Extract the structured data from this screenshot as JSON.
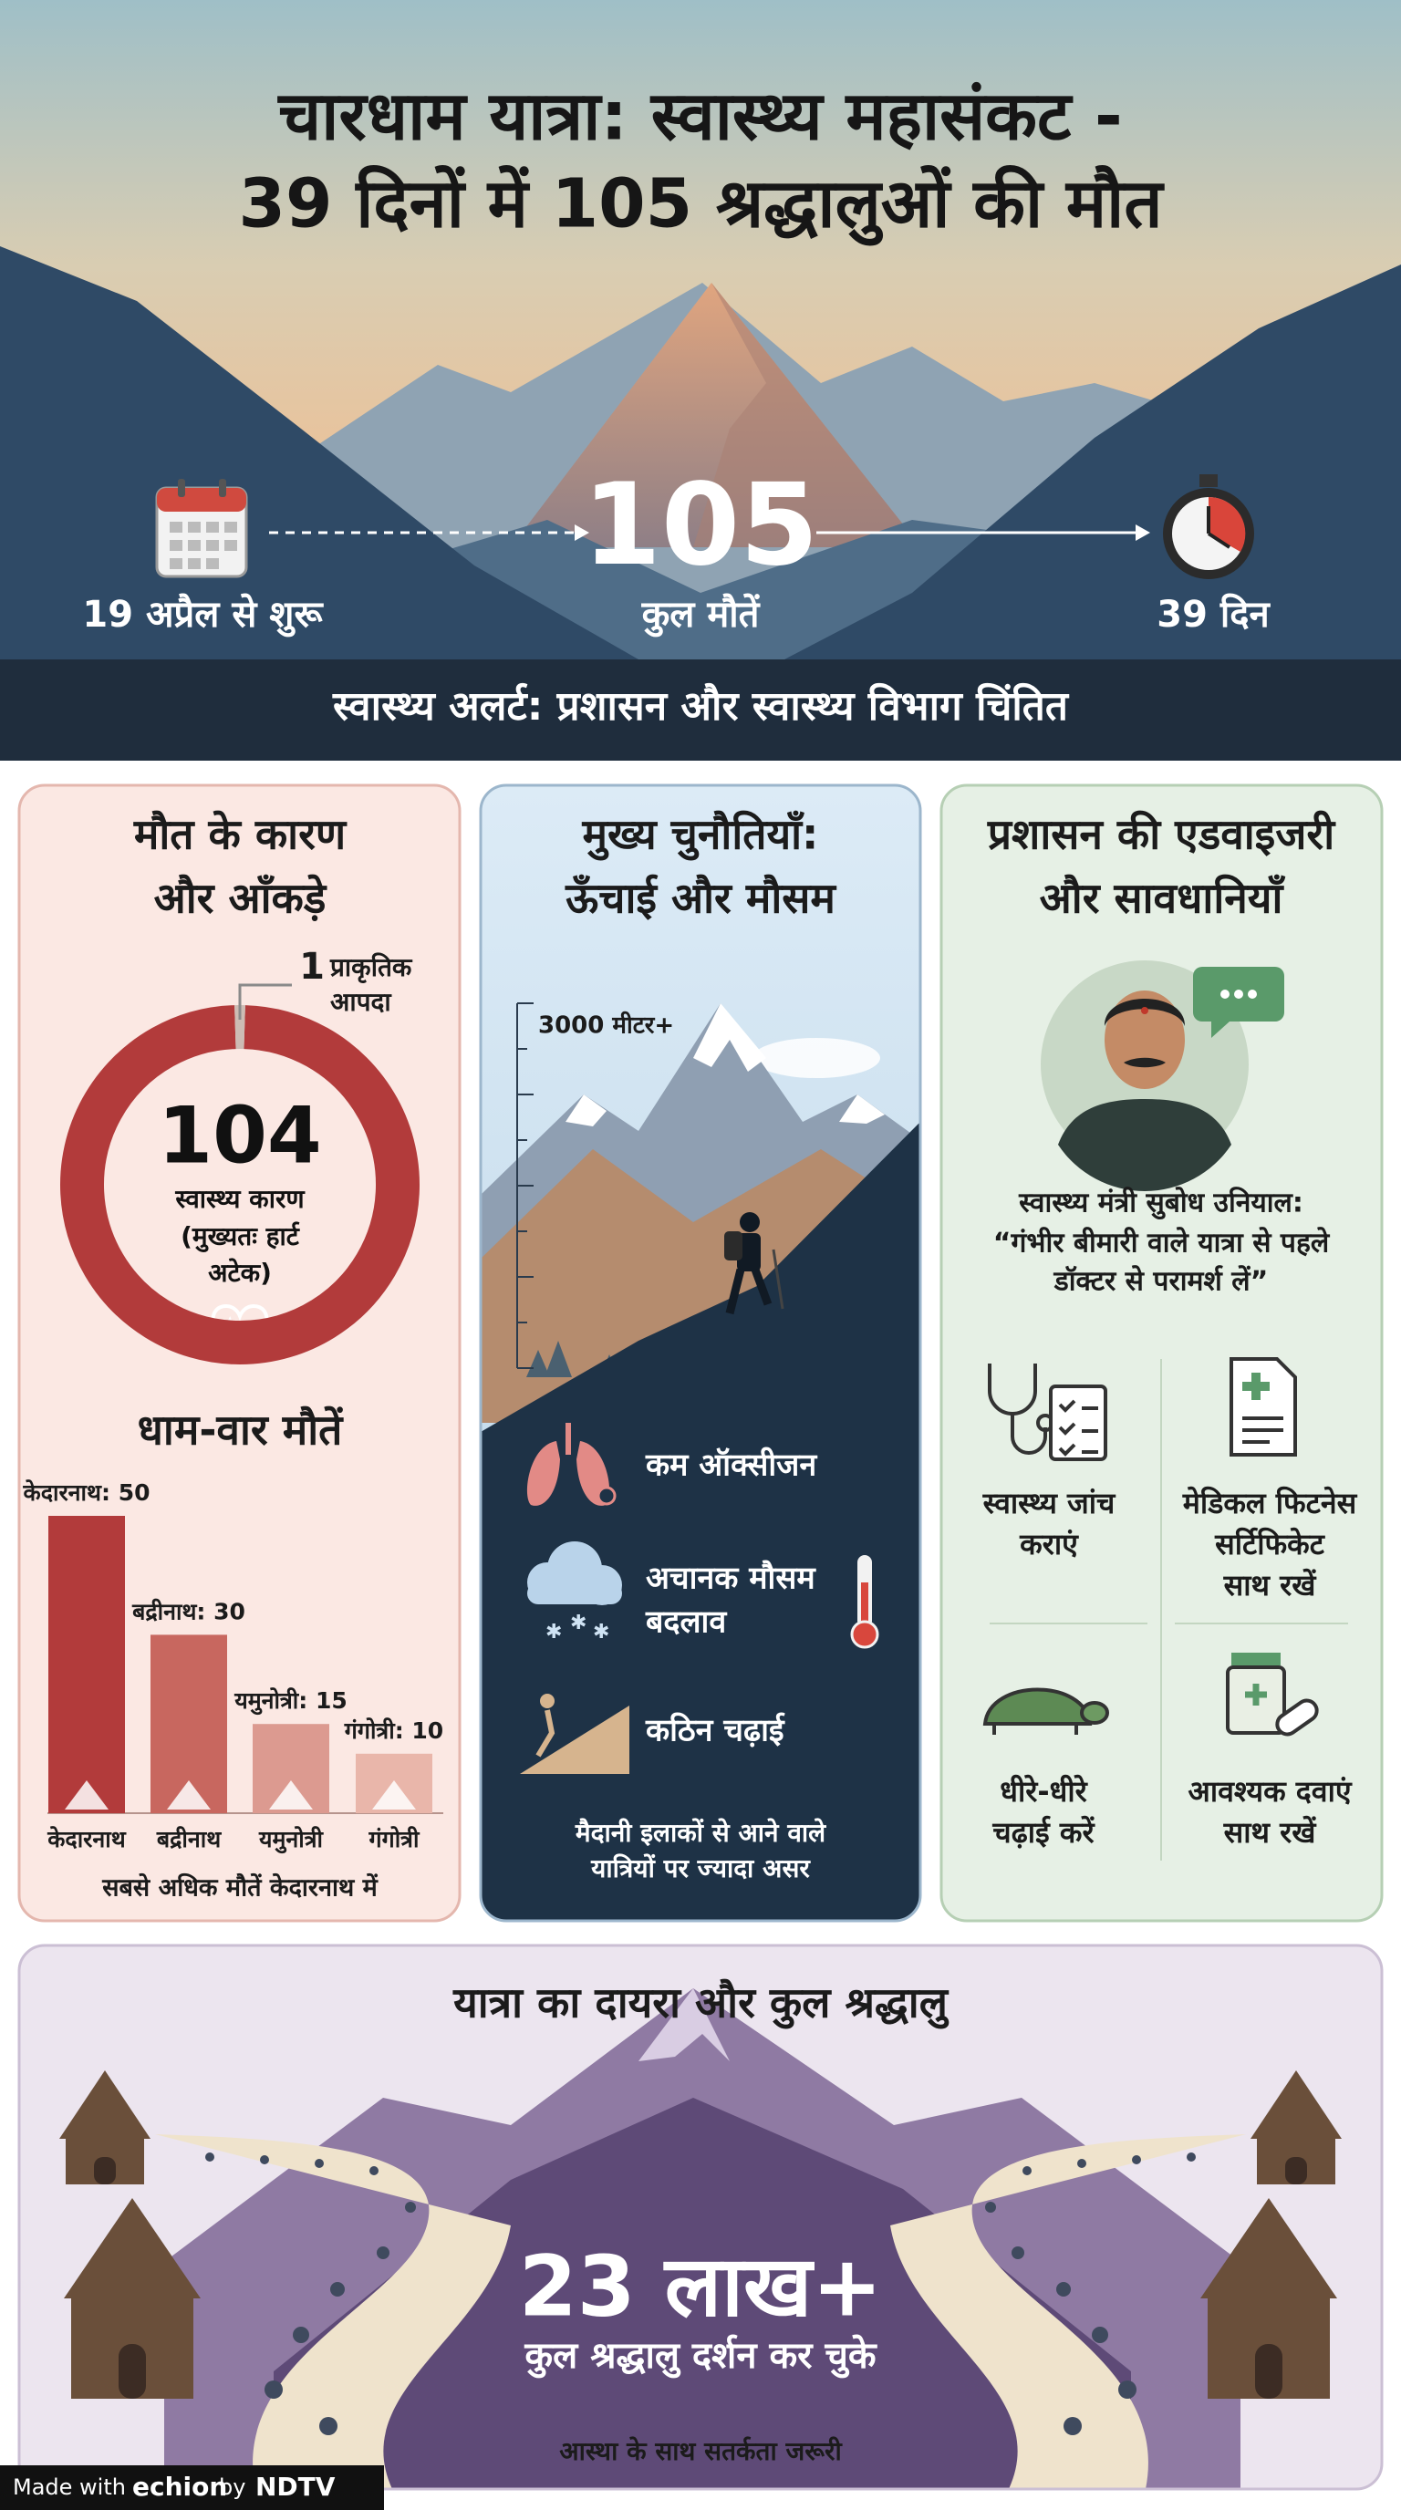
{
  "header": {
    "title_line1": "चारधाम यात्रा: स्वास्थ्य महासंकट -",
    "title_line2": "39 दिनों में 105 श्रद्धालुओं की मौत"
  },
  "timeline": {
    "start": "19 अप्रैल से शुरू",
    "total": 105,
    "total_label": "कुल मौतें",
    "duration": "39 दिन"
  },
  "alert": "स्वास्थ्य अलर्ट: प्रशासन और स्वास्थ्य विभाग चिंतित",
  "causes": {
    "title": [
      "मौत के कारण",
      "और आँकड़े"
    ],
    "donut": {
      "values": [
        104,
        1
      ],
      "colors": [
        "#b23b3b",
        "#cdbcb4"
      ],
      "labels": [
        [
          "स्वास्थ्य कारण",
          "(मुख्यतः हार्ट",
          "अटेक)"
        ],
        [
          "प्राकृतिक",
          "आपदा"
        ]
      ]
    },
    "bars": {
      "title": "धाम-वार मौतें",
      "categories": [
        "केदारनाथ",
        "बद्रीनाथ",
        "यमुनोत्री",
        "गंगोत्री"
      ],
      "values": [
        50,
        30,
        15,
        10
      ],
      "value_labels": [
        "केदारनाथ: 50",
        "बद्रीनाथ: 30",
        "यमुनोत्री: 15",
        "गंगोत्री: 10"
      ],
      "colors": [
        "#b23b3b",
        "#c8675f",
        "#dc9a90",
        "#e9b6aa"
      ],
      "note": "सबसे अधिक मौतें केदारनाथ में"
    }
  },
  "challenges": {
    "title": [
      "मुख्य चुनौतियाँ:",
      "ऊँचाई और मौसम"
    ],
    "altitude": "3000 मीटर+",
    "items": [
      [
        "कम ऑक्सीजन"
      ],
      [
        "अचानक मौसम",
        "बदलाव"
      ],
      [
        "कठिन चढ़ाई"
      ]
    ],
    "note": [
      "मैदानी इलाकों से आने वाले",
      "यात्रियों पर ज्यादा असर"
    ]
  },
  "advisory": {
    "title": [
      "प्रशासन की एडवाइजरी",
      "और सावधानियाँ"
    ],
    "quote": [
      "स्वास्थ्य मंत्री सुबोध उनियाल:",
      "“गंभीर बीमारी वाले यात्रा से पहले",
      "डॉक्टर से परामर्श लें”"
    ],
    "tips": [
      [
        "स्वास्थ्य जांच",
        "कराएं"
      ],
      [
        "मेडिकल फिटनेस",
        "सर्टिफिकेट",
        "साथ रखें"
      ],
      [
        "धीरे-धीरे",
        "चढ़ाई करें"
      ],
      [
        "आवश्यक दवाएं",
        "साथ रखें"
      ]
    ]
  },
  "scope": {
    "title": "यात्रा का दायरा और कुल श्रद्धालु",
    "total": "23 लाख+",
    "total_label": "कुल श्रद्धालु दर्शन कर चुके",
    "note": "आस्था के साथ सतर्कता जरूरी"
  },
  "footer": {
    "made_with": "Made with",
    "brand": "echion",
    "by": "by",
    "ndtv": "NDTV"
  }
}
